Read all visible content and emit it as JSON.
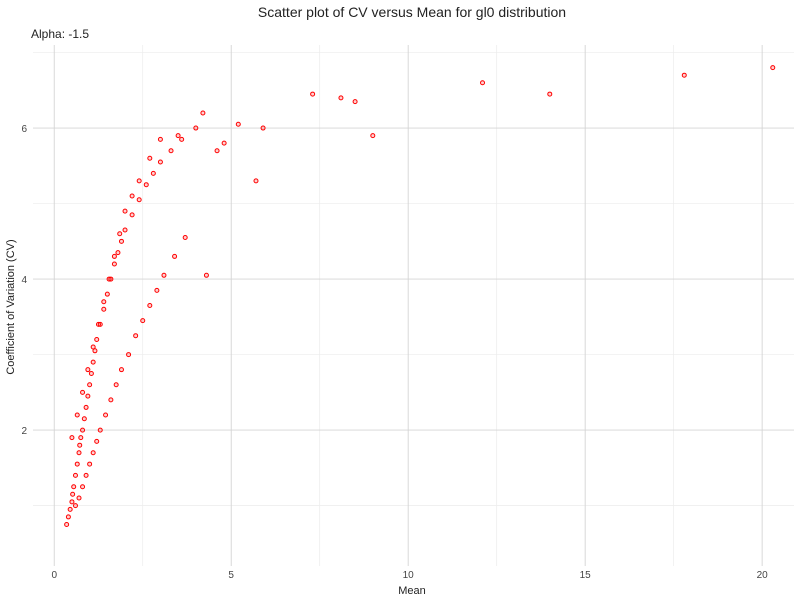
{
  "chart_data": {
    "type": "scatter",
    "title": "Scatter plot of CV versus Mean for gl0 distribution",
    "subtitle": "Alpha: -1.5",
    "xlabel": "Mean",
    "ylabel": "Coefficient of Variation (CV)",
    "xlim": [
      -0.6,
      20.9
    ],
    "ylim": [
      0.2,
      7.1
    ],
    "x_ticks": [
      0,
      5,
      10,
      15,
      20
    ],
    "y_ticks": [
      2,
      4,
      6
    ],
    "grid": true,
    "legend": "none",
    "point_color": "#ff0000",
    "series": [
      {
        "x": [
          0.35,
          0.4,
          0.45,
          0.5,
          0.52,
          0.55,
          0.6,
          0.65,
          0.7,
          0.72,
          0.75,
          0.8,
          0.85,
          0.9,
          0.95,
          1.0,
          1.05,
          1.1,
          1.15,
          1.2,
          1.3,
          1.4,
          1.5,
          1.6,
          1.7,
          1.8,
          1.9,
          2.0,
          2.2,
          2.4,
          2.6,
          2.8,
          3.0,
          3.3,
          3.6,
          4.0,
          0.6,
          0.7,
          0.8,
          0.9,
          1.0,
          1.1,
          1.2,
          1.3,
          1.45,
          1.6,
          1.75,
          1.9,
          2.1,
          2.3,
          2.5,
          2.7,
          2.9,
          3.1,
          3.4,
          3.7,
          0.5,
          0.65,
          0.8,
          0.95,
          1.1,
          1.25,
          1.4,
          1.55,
          1.7,
          1.85,
          2.0,
          2.2,
          2.4,
          2.7,
          3.0,
          3.5,
          4.2,
          4.3,
          4.6,
          4.8,
          5.2,
          5.9,
          5.7,
          7.3,
          8.1,
          8.5,
          9.0,
          12.1,
          14.0,
          17.8,
          20.3
        ],
        "y": [
          0.75,
          0.85,
          0.95,
          1.05,
          1.15,
          1.25,
          1.4,
          1.55,
          1.7,
          1.8,
          1.9,
          2.0,
          2.15,
          2.3,
          2.45,
          2.6,
          2.75,
          2.9,
          3.05,
          3.2,
          3.4,
          3.6,
          3.8,
          4.0,
          4.2,
          4.35,
          4.5,
          4.65,
          4.85,
          5.05,
          5.25,
          5.4,
          5.55,
          5.7,
          5.85,
          6.0,
          1.0,
          1.1,
          1.25,
          1.4,
          1.55,
          1.7,
          1.85,
          2.0,
          2.2,
          2.4,
          2.6,
          2.8,
          3.0,
          3.25,
          3.45,
          3.65,
          3.85,
          4.05,
          4.3,
          4.55,
          1.9,
          2.2,
          2.5,
          2.8,
          3.1,
          3.4,
          3.7,
          4.0,
          4.3,
          4.6,
          4.9,
          5.1,
          5.3,
          5.6,
          5.85,
          5.9,
          6.2,
          4.05,
          5.7,
          5.8,
          6.05,
          6.0,
          5.3,
          6.45,
          6.4,
          6.35,
          5.9,
          6.6,
          6.45,
          6.7,
          6.8
        ]
      }
    ]
  }
}
